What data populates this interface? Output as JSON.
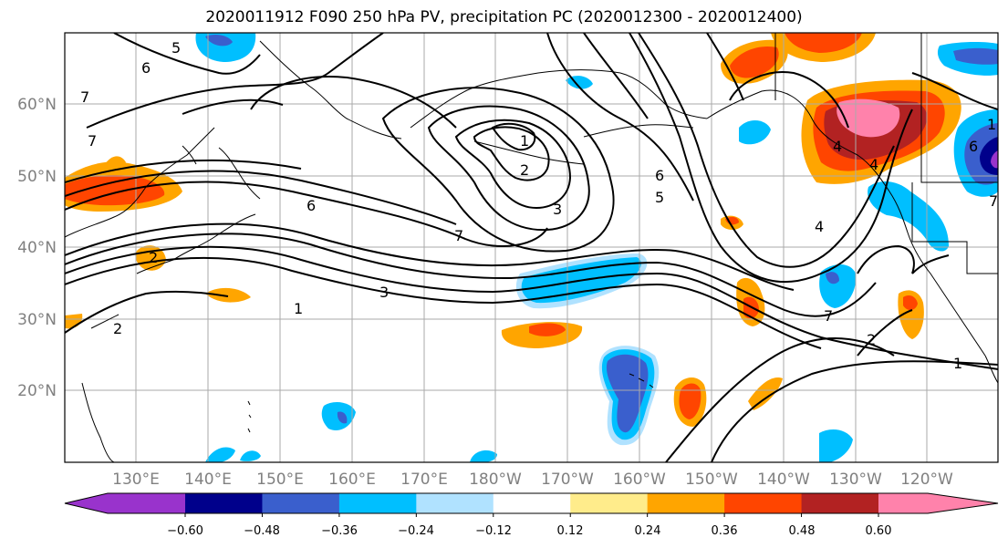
{
  "title": "2020011912 F090 250 hPa PV, precipitation PC (2020012300 - 2020012400)",
  "lat_labels": [
    "60°N",
    "50°N",
    "40°N",
    "30°N",
    "20°N"
  ],
  "lon_labels": [
    "130°E",
    "140°E",
    "150°E",
    "160°E",
    "170°E",
    "180°W",
    "170°W",
    "160°W",
    "150°W",
    "140°W",
    "130°W",
    "120°W"
  ],
  "colorbar": {
    "ticks": [
      "−0.60",
      "−0.48",
      "−0.36",
      "−0.24",
      "−0.12",
      "0.12",
      "0.24",
      "0.36",
      "0.48",
      "0.60"
    ],
    "colors": [
      "#9933cc",
      "#00008b",
      "#3a5fcd",
      "#00bfff",
      "#b0e2ff",
      "#ffffff",
      "#ffec8b",
      "#ffa500",
      "#ff4500",
      "#b22222",
      "#ff82ab"
    ]
  },
  "contour_labels": [
    "5",
    "6",
    "7",
    "7",
    "6",
    "2",
    "2",
    "1",
    "3",
    "7",
    "1",
    "2",
    "3",
    "6",
    "5",
    "4",
    "7",
    "2",
    "1",
    "6",
    "4",
    "1",
    "4",
    "7"
  ]
}
